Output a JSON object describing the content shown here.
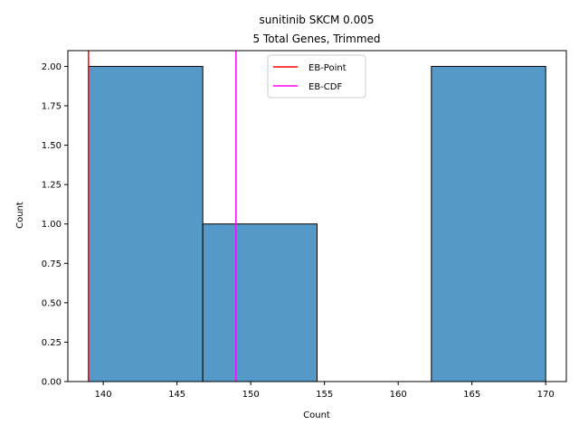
{
  "chart_data": {
    "type": "bar",
    "title_line1": "sunitinib SKCM 0.005",
    "title_line2": "5 Total Genes, Trimmed",
    "xlabel": "Count",
    "ylabel": "Count",
    "xlim": [
      137.6,
      171.4
    ],
    "ylim": [
      0,
      2.1
    ],
    "xticks": [
      140,
      145,
      150,
      155,
      160,
      165,
      170
    ],
    "xtick_labels": [
      "140",
      "145",
      "150",
      "155",
      "160",
      "165",
      "170"
    ],
    "yticks": [
      0,
      0.25,
      0.5,
      0.75,
      1.0,
      1.25,
      1.5,
      1.75,
      2.0
    ],
    "ytick_labels": [
      "0.00",
      "0.25",
      "0.50",
      "0.75",
      "1.00",
      "1.25",
      "1.50",
      "1.75",
      "2.00"
    ],
    "bins": [
      {
        "x0": 139.0,
        "x1": 146.75,
        "count": 2
      },
      {
        "x0": 146.75,
        "x1": 154.5,
        "count": 1
      },
      {
        "x0": 154.5,
        "x1": 162.25,
        "count": 0
      },
      {
        "x0": 162.25,
        "x1": 170.0,
        "count": 2
      }
    ],
    "bar_color": "#5499c7",
    "vlines": [
      {
        "name": "EB-Point",
        "x": 139.0,
        "color": "#ff0000"
      },
      {
        "name": "EB-CDF",
        "x": 149.0,
        "color": "#ff00ff"
      }
    ],
    "legend_position": "top-center"
  }
}
